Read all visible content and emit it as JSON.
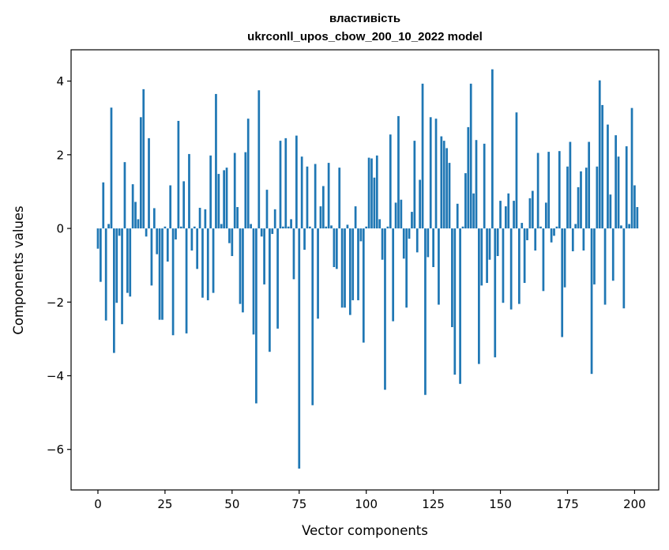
{
  "chart_data": {
    "type": "bar",
    "title": "властивість",
    "subtitle": "ukrconll_upos_cbow_200_10_2022 model",
    "xlabel": "Vector components",
    "ylabel": "Components values",
    "xlim": [
      -10,
      209
    ],
    "ylim": [
      -7.1,
      4.85
    ],
    "xticks": [
      0,
      25,
      50,
      75,
      100,
      125,
      150,
      175,
      200
    ],
    "yticks": [
      4,
      2,
      0,
      -2,
      -4,
      -6
    ],
    "ytick_labels": [
      "4",
      "2",
      "0",
      "−2",
      "−4",
      "−6"
    ],
    "grid": false,
    "bar_color": "#1f77b4",
    "values": [
      -0.55,
      -1.45,
      1.25,
      -2.5,
      0.12,
      3.28,
      -3.38,
      -2.02,
      -0.2,
      -2.6,
      1.8,
      -1.75,
      -1.85,
      1.2,
      0.72,
      0.25,
      3.02,
      3.78,
      -0.22,
      2.45,
      -1.55,
      0.55,
      -0.7,
      -2.48,
      -2.48,
      0.05,
      -0.9,
      1.17,
      -2.9,
      -0.3,
      2.92,
      0.05,
      1.28,
      -2.85,
      2.02,
      -0.6,
      0.05,
      -1.1,
      0.56,
      -1.88,
      0.52,
      -1.95,
      1.98,
      -1.75,
      3.65,
      1.48,
      0.12,
      1.58,
      1.65,
      -0.4,
      -0.75,
      2.05,
      0.58,
      -2.05,
      -2.28,
      2.07,
      2.98,
      0.12,
      -2.88,
      -4.75,
      3.75,
      -0.22,
      -1.52,
      1.05,
      -3.35,
      -0.15,
      0.52,
      -2.72,
      2.38,
      0.05,
      2.45,
      0.05,
      0.25,
      -1.38,
      2.52,
      -6.52,
      1.95,
      -0.58,
      1.68,
      0.05,
      -4.8,
      1.75,
      -2.45,
      0.6,
      1.15,
      0.05,
      1.78,
      0.08,
      -1.05,
      -1.1,
      1.65,
      -2.15,
      -2.15,
      0.1,
      -2.35,
      -1.95,
      0.6,
      -1.95,
      -0.35,
      -3.1,
      0.05,
      1.92,
      1.9,
      1.38,
      1.98,
      0.25,
      -0.85,
      -4.38,
      0.05,
      2.55,
      -2.52,
      0.7,
      3.05,
      0.78,
      -0.82,
      -2.15,
      -0.28,
      0.45,
      2.38,
      -0.65,
      1.32,
      3.93,
      -4.52,
      -0.78,
      3.02,
      -1.05,
      2.98,
      -2.07,
      2.5,
      2.38,
      2.18,
      1.78,
      -2.68,
      -3.97,
      0.67,
      -4.22,
      0.05,
      1.5,
      2.75,
      3.93,
      0.95,
      2.4,
      -3.68,
      -1.55,
      2.3,
      -1.48,
      -0.85,
      4.32,
      -3.5,
      -0.75,
      0.75,
      -2.02,
      0.6,
      0.95,
      -2.2,
      0.75,
      3.15,
      -2.05,
      0.15,
      -1.48,
      -0.32,
      0.82,
      1.02,
      -0.6,
      2.05,
      0.05,
      -1.7,
      0.7,
      2.08,
      -0.38,
      -0.2,
      0.05,
      2.1,
      -2.95,
      -1.6,
      1.68,
      2.35,
      -0.62,
      0.12,
      1.12,
      1.55,
      -0.6,
      1.65,
      2.35,
      -3.95,
      -1.52,
      1.68,
      4.02,
      3.35,
      -2.07,
      2.82,
      0.92,
      -1.42,
      2.53,
      1.95,
      0.08,
      -2.17,
      2.23,
      0.12,
      3.27,
      1.17,
      0.58
    ]
  }
}
